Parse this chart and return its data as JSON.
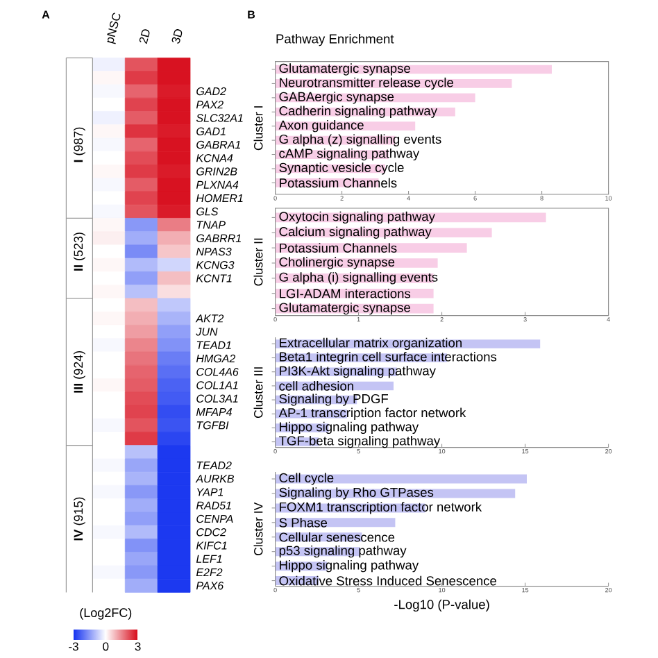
{
  "chart_data": [
    {
      "type": "heatmap",
      "categories": [
        "pNSC",
        "2D",
        "3D"
      ],
      "y_categories": [
        null,
        null,
        null,
        null,
        null,
        null,
        "**I** (987)",
        null,
        null,
        null,
        null,
        null,
        null,
        null,
        "**II** (523)",
        null,
        null,
        null,
        null,
        null,
        null,
        null,
        null,
        "**III** (924)",
        null,
        null,
        null,
        null,
        null,
        null,
        null,
        null,
        null,
        null,
        "**IV** (915)",
        null,
        null,
        null,
        null,
        null
      ],
      "y2_categories": [
        null,
        null,
        "GAD2",
        "PAX2",
        "SLC32A1",
        "GAD1",
        "GABRA1",
        "KCNA4",
        "GRIN2B",
        "PLXNA4",
        "HOMER1",
        "GLS",
        "TNAP",
        "GABRR1",
        "NPAS3",
        "KCNG3",
        "KCNT1",
        null,
        null,
        "AKT2",
        "JUN",
        "TEAD1",
        "HMGA2",
        "COL4A6",
        "COL1A1",
        "COL3A1",
        "MFAP4",
        "TGFBI",
        null,
        null,
        "TEAD2",
        "AURKB",
        "YAP1",
        "RAD51",
        "CENPA",
        "CDC2",
        "KIFC1",
        "LEF1",
        "E2F2",
        "PAX6"
      ],
      "cells": [
        [
          -0.2,
          2.1,
          2.9
        ],
        [
          0.1,
          2.4,
          2.9
        ],
        [
          -0.1,
          1.9,
          2.8
        ],
        [
          0.0,
          2.3,
          2.9
        ],
        [
          -0.2,
          2.0,
          2.9
        ],
        [
          0.1,
          2.5,
          2.8
        ],
        [
          -0.1,
          1.9,
          2.9
        ],
        [
          0.0,
          2.2,
          2.9
        ],
        [
          0.1,
          2.4,
          2.8
        ],
        [
          -0.1,
          2.0,
          2.9
        ],
        [
          0.0,
          2.3,
          2.9
        ],
        [
          -0.1,
          2.1,
          2.8
        ],
        [
          0.1,
          -1.5,
          1.6
        ],
        [
          0.2,
          -1.2,
          1.0
        ],
        [
          0.0,
          -1.7,
          0.7
        ],
        [
          0.1,
          -1.0,
          -0.6
        ],
        [
          0.0,
          -1.4,
          0.8
        ],
        [
          0.1,
          -0.9,
          0.4
        ],
        [
          0.0,
          0.8,
          -0.8
        ],
        [
          0.1,
          1.0,
          -1.1
        ],
        [
          0.0,
          1.2,
          -1.4
        ],
        [
          -0.1,
          1.5,
          -1.6
        ],
        [
          0.0,
          1.7,
          -1.9
        ],
        [
          0.0,
          1.9,
          -2.1
        ],
        [
          0.1,
          2.0,
          -2.3
        ],
        [
          0.0,
          2.2,
          -2.4
        ],
        [
          0.0,
          2.3,
          -2.6
        ],
        [
          -0.1,
          2.1,
          -2.5
        ],
        [
          0.0,
          2.4,
          -2.7
        ],
        [
          0.0,
          -0.9,
          -2.9
        ],
        [
          -0.1,
          -1.3,
          -2.9
        ],
        [
          0.0,
          -1.1,
          -2.9
        ],
        [
          -0.1,
          -1.5,
          -2.9
        ],
        [
          0.0,
          -1.2,
          -2.9
        ],
        [
          0.0,
          -1.4,
          -2.9
        ],
        [
          -0.1,
          -1.0,
          -2.9
        ],
        [
          0.0,
          -1.6,
          -2.9
        ],
        [
          0.0,
          -1.3,
          -2.9
        ],
        [
          -0.1,
          -1.5,
          -2.9
        ],
        [
          0.0,
          -1.2,
          -2.9
        ]
      ],
      "clim": [
        -3,
        3
      ],
      "cticks": [
        -3,
        0,
        3
      ],
      "clabel": "(Log2FC)",
      "annotations": [
        "A"
      ]
    },
    {
      "type": "bar",
      "orientation": "horizontal",
      "title": "Pathway Enrichment",
      "ylabel": "Cluster I",
      "categories": [
        "Glutamatergic synapse",
        "Neurotransmitter release cycle",
        "GABAergic synapse",
        "Cadherin signaling pathway",
        "Axon guidance",
        "G alpha (z) signalling events",
        "cAMP signaling pathway",
        "Synaptic vesicle cycle",
        "Potassium Channels"
      ],
      "values": [
        8.3,
        7.1,
        6.0,
        5.4,
        4.2,
        3.6,
        3.4,
        3.3,
        3.1
      ],
      "color": "#f8cde6",
      "xlim": [
        0,
        10
      ],
      "xticks": [
        0,
        2,
        4,
        6,
        8,
        10
      ],
      "annotations": [
        "B"
      ]
    },
    {
      "type": "bar",
      "orientation": "horizontal",
      "ylabel": "Cluster II",
      "categories": [
        "Oxytocin signaling pathway",
        "Calcium signaling pathway",
        "Potassium Channels",
        "Cholinergic synapse",
        "G alpha (i) signalling events",
        "LGI-ADAM interactions",
        "Glutamatergic synapse"
      ],
      "values": [
        3.25,
        2.6,
        2.3,
        1.95,
        1.9,
        1.9,
        1.9
      ],
      "color": "#f8cde6",
      "xlim": [
        0,
        4
      ],
      "xticks": [
        0,
        1,
        2,
        3,
        4
      ]
    },
    {
      "type": "bar",
      "orientation": "horizontal",
      "ylabel": "Cluster III",
      "categories": [
        "Extracellular matrix organization",
        "Beta1 integrin cell surface interactions",
        "PI3K-Akt signaling pathway",
        "cell adhesion",
        "Signaling by PDGF",
        "AP-1 transcription factor network",
        "Hippo signaling pathway",
        "TGF-beta signaling pathway"
      ],
      "values": [
        15.9,
        10.3,
        7.3,
        7.1,
        4.9,
        4.3,
        3.2,
        2.6
      ],
      "color": "#c4c4f4",
      "xlim": [
        0,
        20
      ],
      "xticks": [
        0,
        5,
        10,
        15,
        20
      ]
    },
    {
      "type": "bar",
      "orientation": "horizontal",
      "ylabel": "Cluster IV",
      "xlabel": "-Log10 (P-value)",
      "categories": [
        "Cell cycle",
        "Signaling by Rho GTPases",
        "FOXM1 transcription factor network",
        "S Phase",
        "Cellular senescence",
        "p53 signaling pathway",
        "Hippo signaling pathway",
        "Oxidative Stress Induced Senescence"
      ],
      "values": [
        15.1,
        14.4,
        9.0,
        7.2,
        5.2,
        5.1,
        3.1,
        2.6
      ],
      "color": "#c4c4f4",
      "xlim": [
        0,
        20
      ],
      "xticks": [
        0,
        5,
        10,
        15,
        20
      ]
    }
  ]
}
